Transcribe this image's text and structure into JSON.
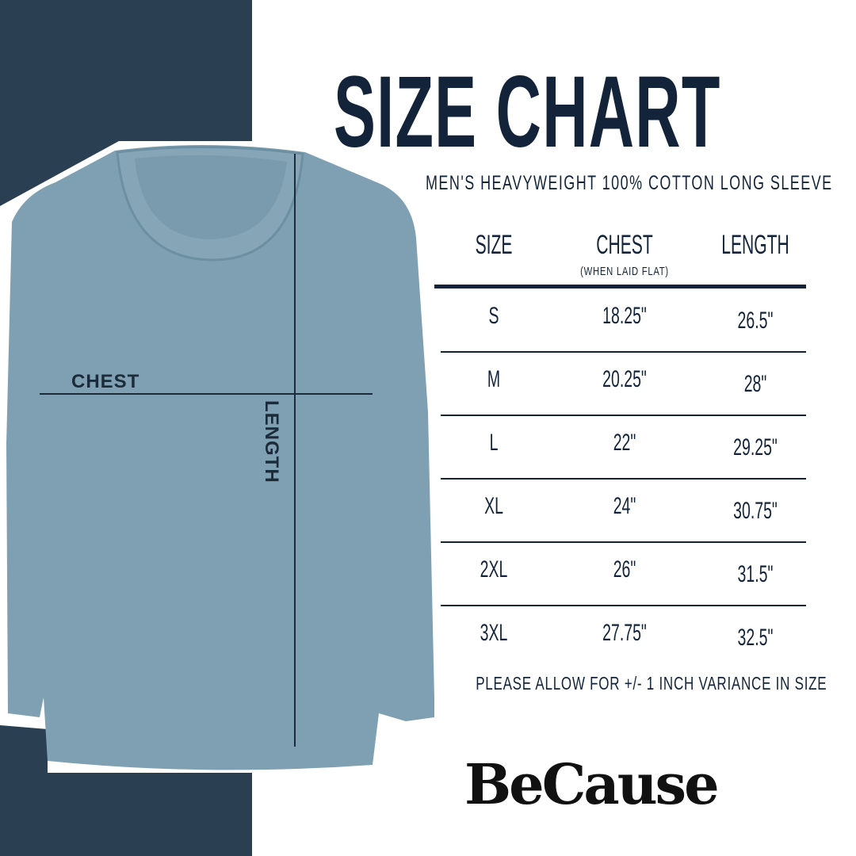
{
  "title": "SIZE CHART",
  "subtitle": "MEN'S HEAVYWEIGHT 100% COTTON LONG SLEEVE",
  "colors": {
    "navy_strip": "#2b3f52",
    "text": "#13243a",
    "shirt": "#7fa0b2"
  },
  "diagram": {
    "chest_label": "CHEST",
    "length_label": "LENGTH"
  },
  "table": {
    "headers": {
      "size": "SIZE",
      "chest": "CHEST",
      "chest_note": "(WHEN LAID FLAT)",
      "length": "LENGTH"
    },
    "rows": [
      {
        "size": "S",
        "chest": "18.25\"",
        "length": "26.5\""
      },
      {
        "size": "M",
        "chest": "20.25\"",
        "length": "28\""
      },
      {
        "size": "L",
        "chest": "22\"",
        "length": "29.25\""
      },
      {
        "size": "XL",
        "chest": "24\"",
        "length": "30.75\""
      },
      {
        "size": "2XL",
        "chest": "26\"",
        "length": "31.5\""
      },
      {
        "size": "3XL",
        "chest": "27.75\"",
        "length": "32.5\""
      }
    ]
  },
  "note": "PLEASE ALLOW FOR +/- 1 INCH VARIANCE IN SIZE",
  "brand": "BeCause"
}
